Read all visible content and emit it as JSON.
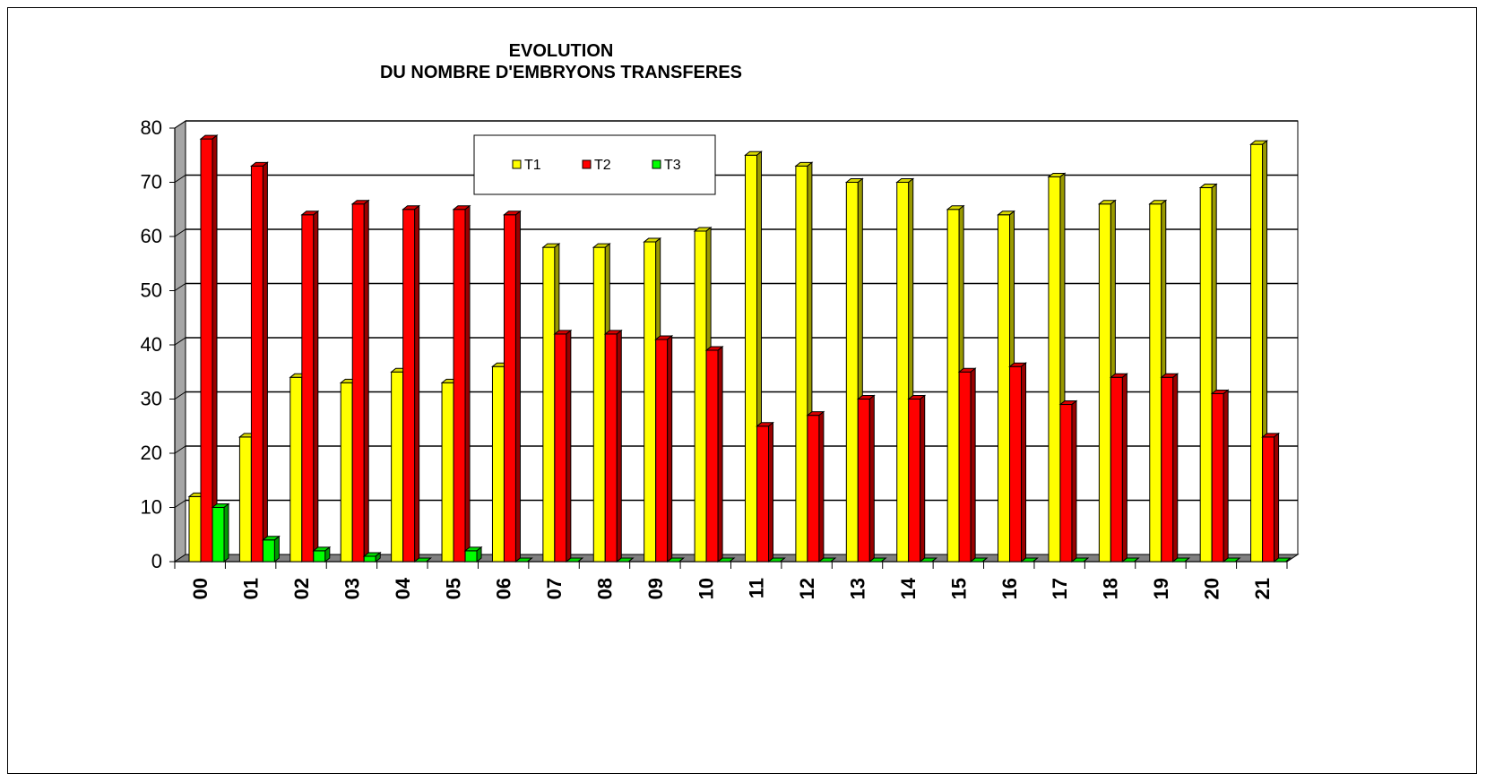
{
  "chart_data": {
    "type": "bar",
    "title": [
      "EVOLUTION",
      "DU NOMBRE D'EMBRYONS TRANSFERES"
    ],
    "categories": [
      "00",
      "01",
      "02",
      "03",
      "04",
      "05",
      "06",
      "07",
      "08",
      "09",
      "10",
      "11",
      "12",
      "13",
      "14",
      "15",
      "16",
      "17",
      "18",
      "19",
      "20",
      "21"
    ],
    "series": [
      {
        "name": "T1",
        "color": "#ffff00",
        "values": [
          12,
          23,
          34,
          33,
          35,
          33,
          36,
          58,
          58,
          59,
          61,
          75,
          73,
          70,
          70,
          65,
          64,
          71,
          66,
          66,
          69,
          77
        ]
      },
      {
        "name": "T2",
        "color": "#ff0000",
        "values": [
          78,
          73,
          64,
          66,
          65,
          65,
          64,
          42,
          42,
          41,
          39,
          25,
          27,
          30,
          30,
          35,
          36,
          29,
          34,
          34,
          31,
          23
        ]
      },
      {
        "name": "T3",
        "color": "#00ff00",
        "values": [
          10,
          4,
          2,
          1,
          0,
          2,
          0,
          0,
          0,
          0,
          0,
          0,
          0,
          0,
          0,
          0,
          0,
          0,
          0,
          0,
          0,
          0
        ]
      }
    ],
    "ylim": [
      0,
      80
    ],
    "yticks": [
      0,
      10,
      20,
      30,
      40,
      50,
      60,
      70,
      80
    ],
    "grid": true,
    "legend_position": "top-center",
    "style": "3d-bar"
  }
}
